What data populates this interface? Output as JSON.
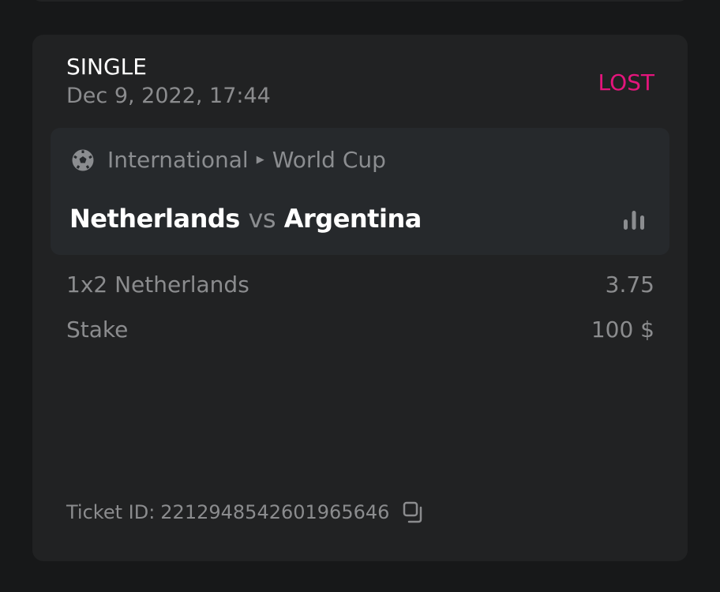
{
  "bet": {
    "type": "SINGLE",
    "date": "Dec 9, 2022, 17:44",
    "status": "LOST",
    "status_color": "#e4157c",
    "event": {
      "sport_icon": "soccer-ball-icon",
      "category": "International",
      "league": "World Cup",
      "home": "Netherlands",
      "vs": "vs",
      "away": "Argentina",
      "stats_icon": "bar-chart-icon"
    },
    "selection": {
      "label": "1x2 Netherlands",
      "odds": "3.75"
    },
    "stake": {
      "label": "Stake",
      "value": "100 $"
    },
    "ticket_label": "Ticket ID:",
    "ticket_id": "2212948542601965646",
    "copy_icon": "copy-icon"
  }
}
